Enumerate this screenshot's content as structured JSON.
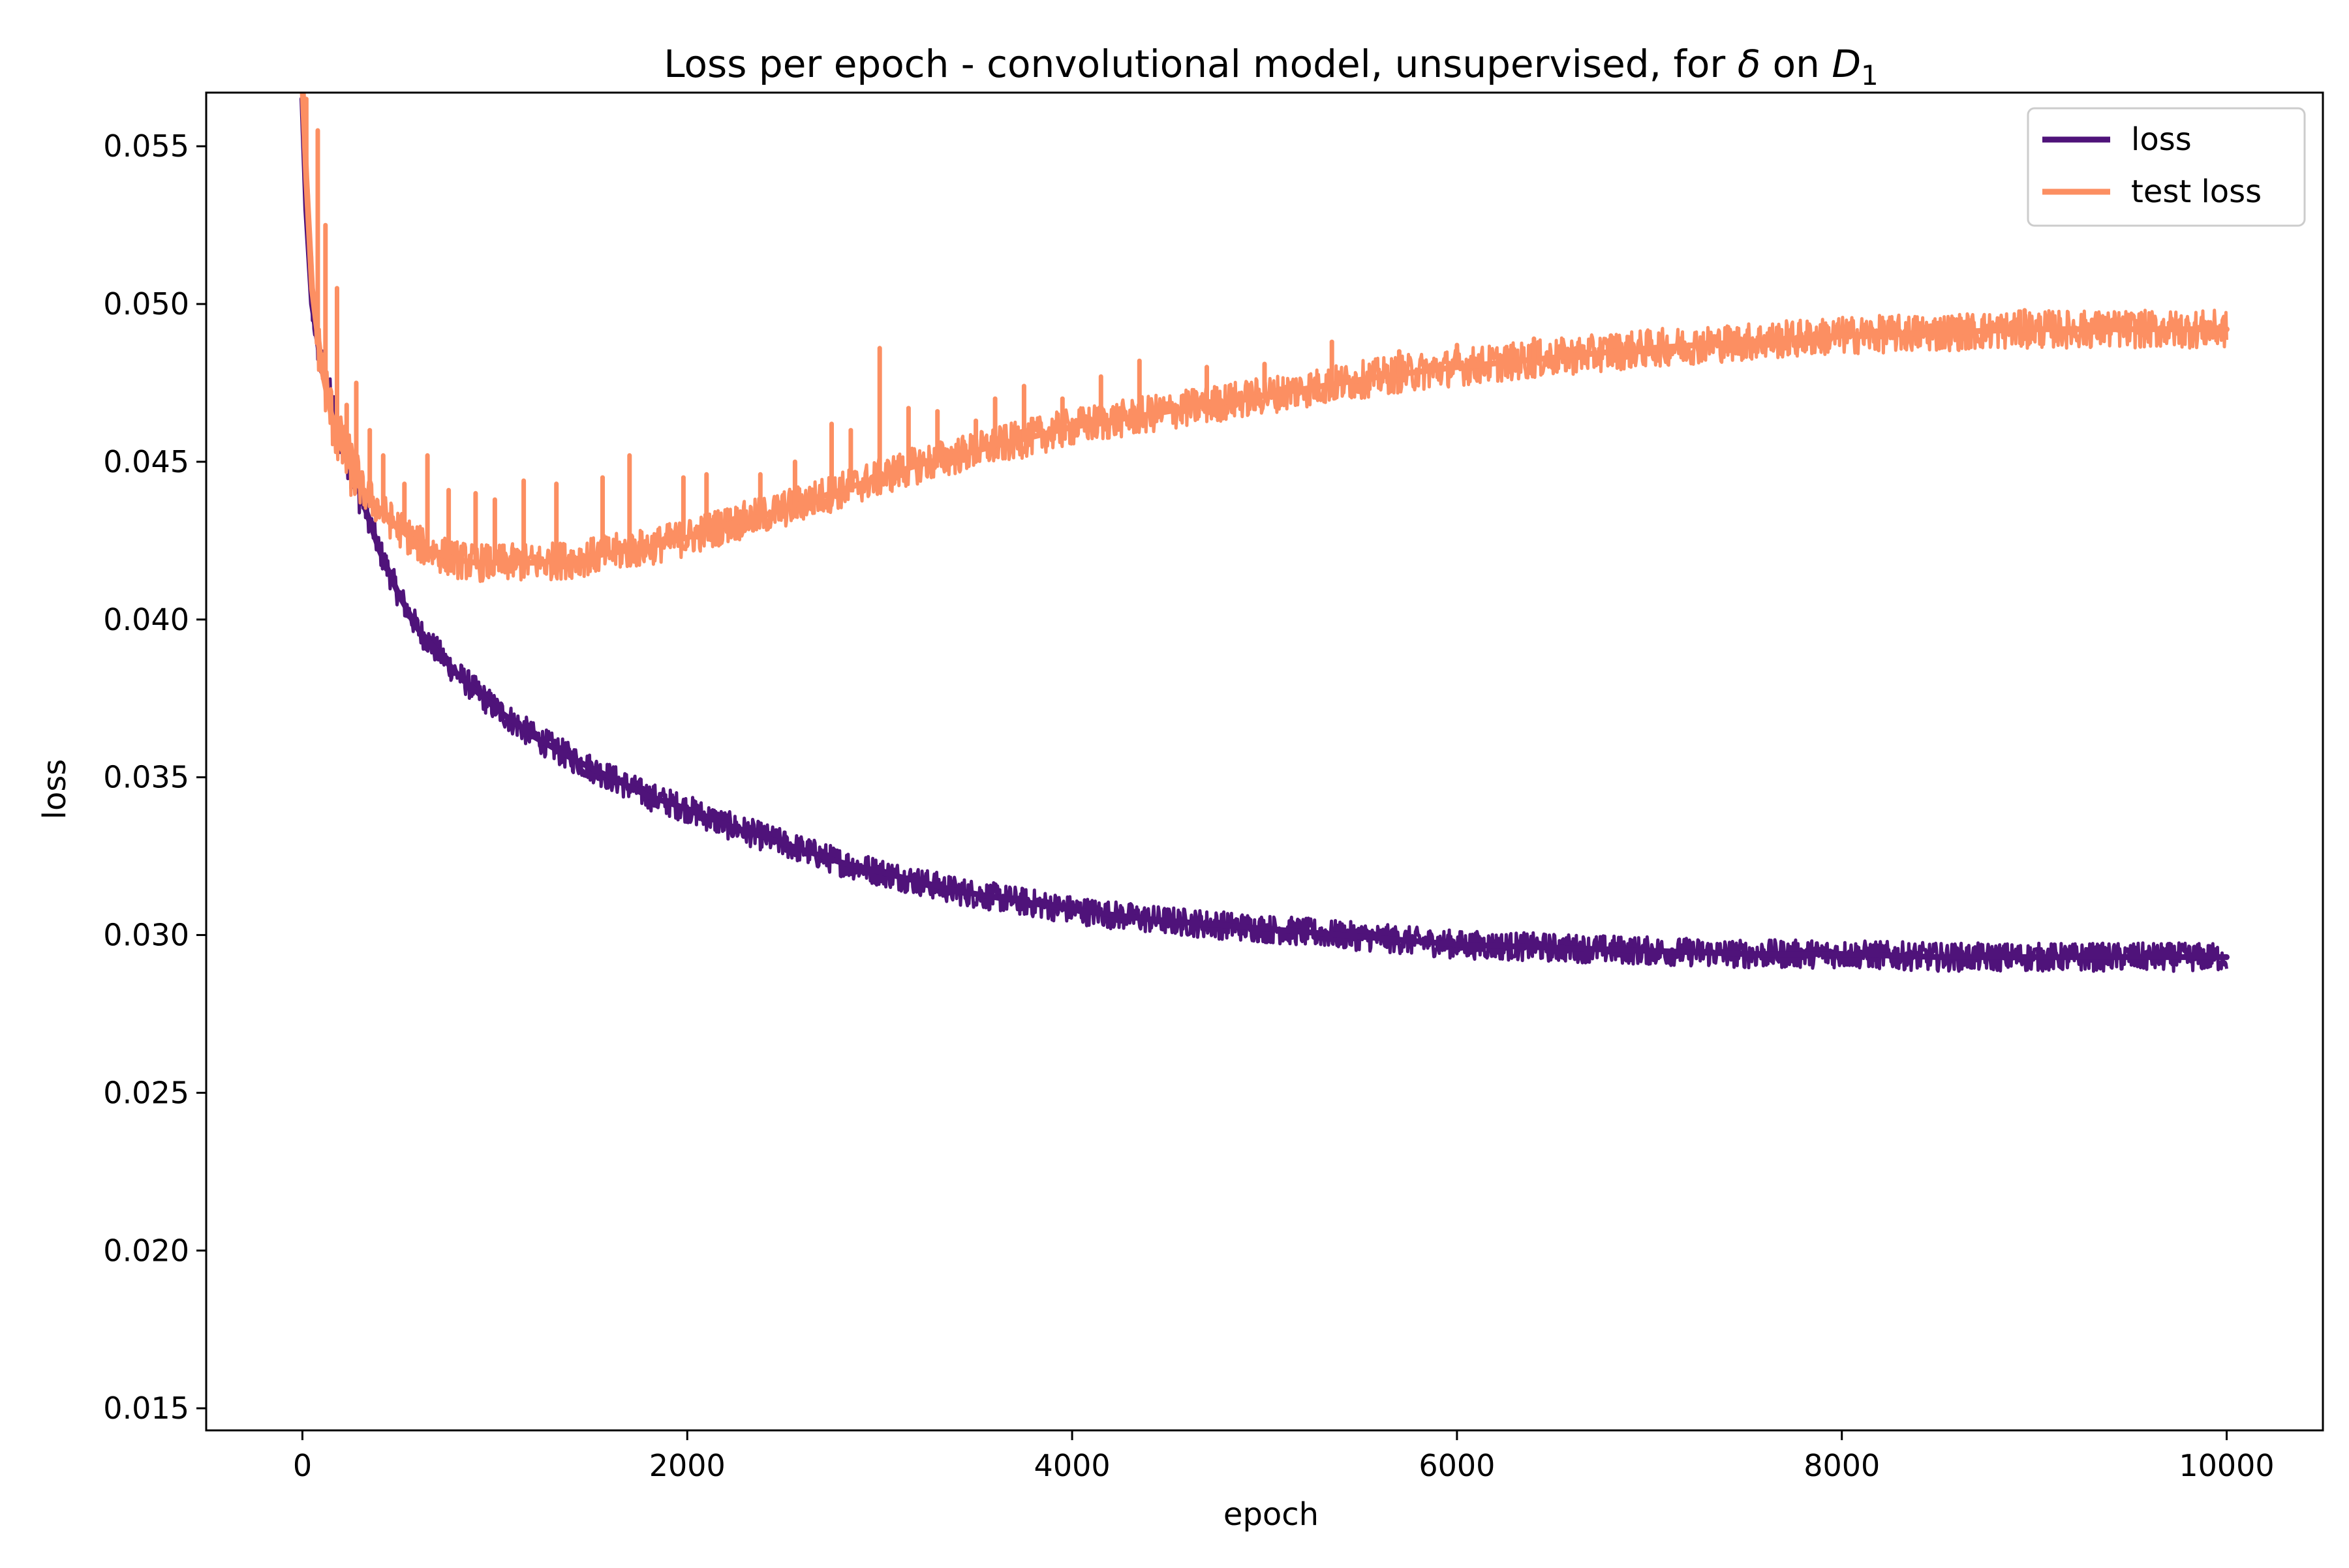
{
  "chart_data": {
    "type": "line",
    "title": "Loss per epoch - convolutional model, unsupervised, for δ on D₁",
    "title_parts": {
      "prefix": "Loss per epoch - convolutional model, unsupervised, for ",
      "symbol": "δ",
      "middle": " on ",
      "var": "D",
      "subscript": "1"
    },
    "xlabel": "epoch",
    "ylabel": "loss",
    "xlim": [
      -500,
      10500
    ],
    "ylim": [
      0.0143,
      0.0567
    ],
    "x_ticks": [
      0,
      2000,
      4000,
      6000,
      8000,
      10000
    ],
    "x_tick_labels": [
      "0",
      "2000",
      "4000",
      "6000",
      "8000",
      "10000"
    ],
    "y_ticks": [
      0.015,
      0.02,
      0.025,
      0.03,
      0.035,
      0.04,
      0.045,
      0.05,
      0.055
    ],
    "y_tick_labels": [
      "0.015",
      "0.020",
      "0.025",
      "0.030",
      "0.035",
      "0.040",
      "0.045",
      "0.050",
      "0.055"
    ],
    "grid": false,
    "legend_position": "top-right",
    "series": [
      {
        "name": "loss",
        "color": "#4f137a",
        "noise_band": 0.00045,
        "points": [
          [
            0,
            0.0565
          ],
          [
            20,
            0.053
          ],
          [
            50,
            0.05
          ],
          [
            100,
            0.048
          ],
          [
            150,
            0.0468
          ],
          [
            200,
            0.0458
          ],
          [
            300,
            0.044
          ],
          [
            400,
            0.0422
          ],
          [
            500,
            0.0408
          ],
          [
            600,
            0.0397
          ],
          [
            700,
            0.039
          ],
          [
            800,
            0.0383
          ],
          [
            1000,
            0.0372
          ],
          [
            1200,
            0.0363
          ],
          [
            1400,
            0.0356
          ],
          [
            1600,
            0.035
          ],
          [
            1800,
            0.0344
          ],
          [
            2000,
            0.034
          ],
          [
            2200,
            0.0335
          ],
          [
            2400,
            0.0331
          ],
          [
            2600,
            0.0327
          ],
          [
            2800,
            0.0323
          ],
          [
            3000,
            0.032
          ],
          [
            3200,
            0.0317
          ],
          [
            3400,
            0.0314
          ],
          [
            3600,
            0.0312
          ],
          [
            3800,
            0.031
          ],
          [
            4000,
            0.0308
          ],
          [
            4400,
            0.0305
          ],
          [
            4800,
            0.0303
          ],
          [
            5200,
            0.0301
          ],
          [
            5600,
            0.0299
          ],
          [
            6000,
            0.0297
          ],
          [
            6500,
            0.0296
          ],
          [
            7000,
            0.0295
          ],
          [
            7500,
            0.0294
          ],
          [
            8000,
            0.0294
          ],
          [
            8500,
            0.0293
          ],
          [
            9000,
            0.0293
          ],
          [
            9500,
            0.0293
          ],
          [
            10000,
            0.0293
          ]
        ]
      },
      {
        "name": "test loss",
        "color": "#fc8f62",
        "noise_band": 0.0006,
        "points": [
          [
            0,
            0.057
          ],
          [
            20,
            0.054
          ],
          [
            50,
            0.0505
          ],
          [
            100,
            0.048
          ],
          [
            150,
            0.0465
          ],
          [
            200,
            0.0455
          ],
          [
            300,
            0.0442
          ],
          [
            400,
            0.0435
          ],
          [
            500,
            0.0429
          ],
          [
            600,
            0.0424
          ],
          [
            700,
            0.0421
          ],
          [
            800,
            0.0419
          ],
          [
            900,
            0.0418
          ],
          [
            1000,
            0.0418
          ],
          [
            1200,
            0.0418
          ],
          [
            1400,
            0.0419
          ],
          [
            1600,
            0.0421
          ],
          [
            1800,
            0.0423
          ],
          [
            2000,
            0.0426
          ],
          [
            2200,
            0.043
          ],
          [
            2400,
            0.0433
          ],
          [
            2600,
            0.0437
          ],
          [
            2800,
            0.0441
          ],
          [
            3000,
            0.0445
          ],
          [
            3200,
            0.0449
          ],
          [
            3400,
            0.0452
          ],
          [
            3600,
            0.0455
          ],
          [
            3800,
            0.0458
          ],
          [
            4000,
            0.0461
          ],
          [
            4400,
            0.0465
          ],
          [
            4800,
            0.0469
          ],
          [
            5200,
            0.0473
          ],
          [
            5600,
            0.0477
          ],
          [
            6000,
            0.048
          ],
          [
            6500,
            0.0483
          ],
          [
            7000,
            0.0486
          ],
          [
            7500,
            0.0488
          ],
          [
            8000,
            0.049
          ],
          [
            8500,
            0.0491
          ],
          [
            9000,
            0.0492
          ],
          [
            9500,
            0.0492
          ],
          [
            10000,
            0.0492
          ]
        ],
        "spikes": [
          [
            20,
            0.0565
          ],
          [
            80,
            0.0555
          ],
          [
            120,
            0.0525
          ],
          [
            180,
            0.0505
          ],
          [
            230,
            0.0468
          ],
          [
            280,
            0.0475
          ],
          [
            350,
            0.046
          ],
          [
            420,
            0.0452
          ],
          [
            530,
            0.0443
          ],
          [
            650,
            0.0452
          ],
          [
            760,
            0.0441
          ],
          [
            900,
            0.044
          ],
          [
            1000,
            0.0438
          ],
          [
            1150,
            0.0444
          ],
          [
            1320,
            0.0443
          ],
          [
            1560,
            0.0445
          ],
          [
            1700,
            0.0452
          ],
          [
            1980,
            0.0445
          ],
          [
            2100,
            0.0446
          ],
          [
            2380,
            0.0446
          ],
          [
            2560,
            0.045
          ],
          [
            2750,
            0.0462
          ],
          [
            2850,
            0.046
          ],
          [
            3000,
            0.0486
          ],
          [
            3150,
            0.0467
          ],
          [
            3300,
            0.0466
          ],
          [
            3500,
            0.0463
          ],
          [
            3600,
            0.047
          ],
          [
            3750,
            0.0474
          ],
          [
            3950,
            0.047
          ],
          [
            4150,
            0.0477
          ],
          [
            4350,
            0.0482
          ],
          [
            4700,
            0.048
          ],
          [
            5000,
            0.0481
          ],
          [
            5350,
            0.0488
          ],
          [
            5700,
            0.0485
          ],
          [
            6000,
            0.0487
          ],
          [
            6400,
            0.0489
          ],
          [
            6800,
            0.049
          ],
          [
            7400,
            0.0491
          ],
          [
            8000,
            0.0492
          ],
          [
            8500,
            0.0494
          ],
          [
            8950,
            0.0498
          ],
          [
            9300,
            0.0495
          ],
          [
            9700,
            0.0494
          ]
        ]
      }
    ]
  }
}
